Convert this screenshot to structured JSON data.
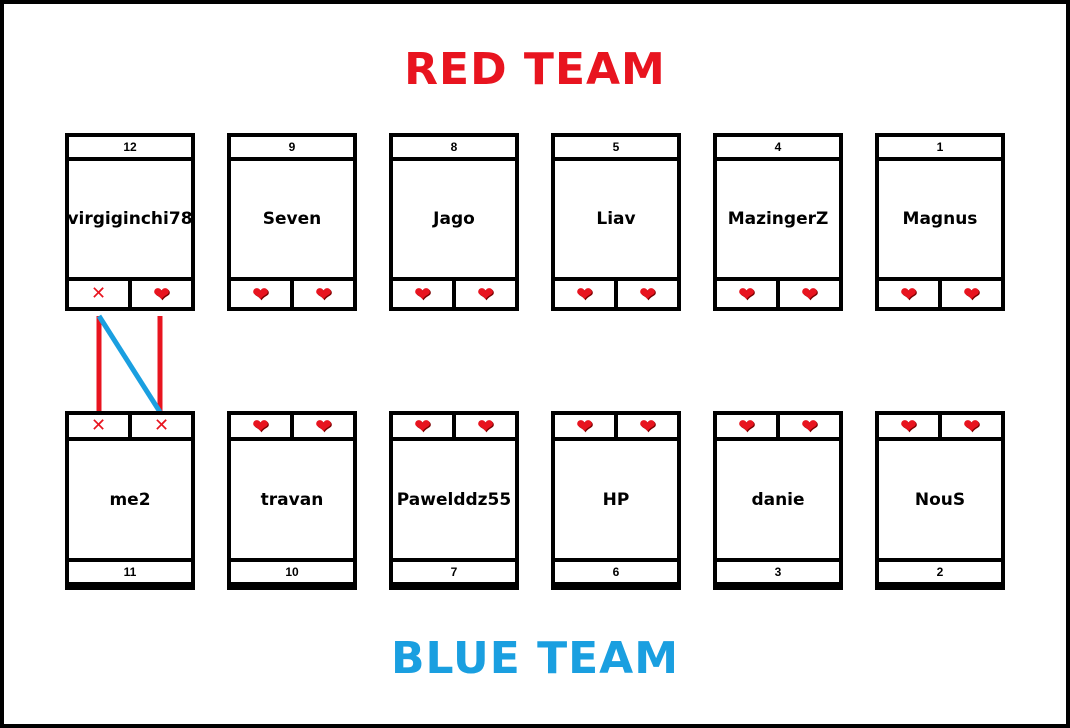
{
  "colors": {
    "red": "#e8141f",
    "blue": "#1a9fe0"
  },
  "red_team": {
    "title": "RED TEAM",
    "players": [
      {
        "name": "virgiginchi78",
        "number": "12",
        "lives": [
          "cross",
          "heart"
        ]
      },
      {
        "name": "Seven",
        "number": "9",
        "lives": [
          "heart",
          "heart"
        ]
      },
      {
        "name": "Jago",
        "number": "8",
        "lives": [
          "heart",
          "heart"
        ]
      },
      {
        "name": "Liav",
        "number": "5",
        "lives": [
          "heart",
          "heart"
        ]
      },
      {
        "name": "MazingerZ",
        "number": "4",
        "lives": [
          "heart",
          "heart"
        ]
      },
      {
        "name": "Magnus",
        "number": "1",
        "lives": [
          "heart",
          "heart"
        ]
      }
    ]
  },
  "blue_team": {
    "title": "BLUE TEAM",
    "players": [
      {
        "name": "me2",
        "number": "11",
        "lives": [
          "cross",
          "cross"
        ]
      },
      {
        "name": "travan",
        "number": "10",
        "lives": [
          "heart",
          "heart"
        ]
      },
      {
        "name": "Pawelddz55",
        "number": "7",
        "lives": [
          "heart",
          "heart"
        ]
      },
      {
        "name": "HP",
        "number": "6",
        "lives": [
          "heart",
          "heart"
        ]
      },
      {
        "name": "danie",
        "number": "3",
        "lives": [
          "heart",
          "heart"
        ]
      },
      {
        "name": "NouS",
        "number": "2",
        "lives": [
          "heart",
          "heart"
        ]
      }
    ]
  },
  "icons": {
    "heart": "heart-icon",
    "cross": "cross-icon"
  },
  "glyphs": {
    "heart": "❤",
    "cross": "✕"
  }
}
